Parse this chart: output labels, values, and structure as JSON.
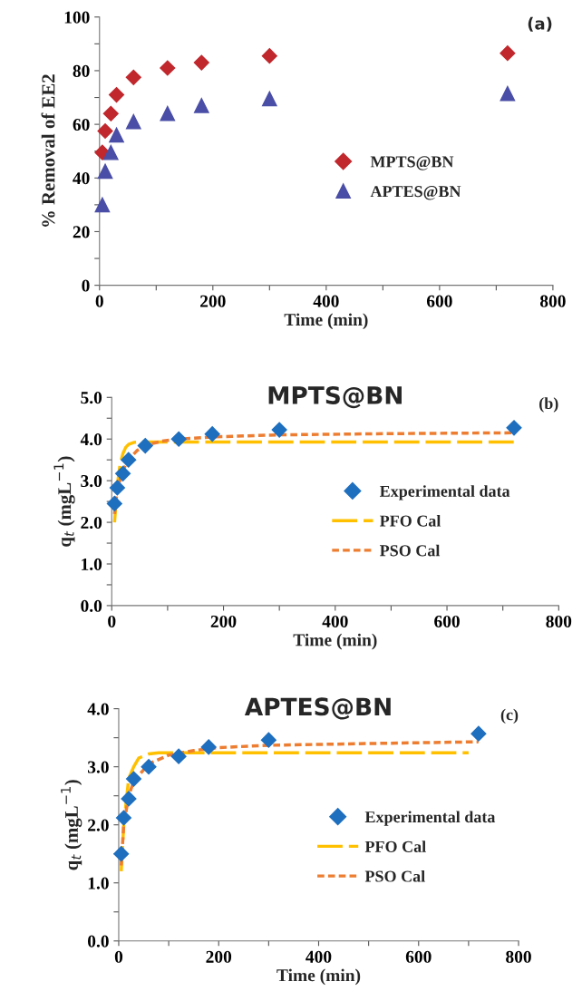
{
  "chart_data": [
    {
      "type": "scatter",
      "xlabel": "Time (min)",
      "ylabel": "% Removal of EE2",
      "annotations": [
        "(a)"
      ],
      "legend": "center right",
      "grid": false,
      "xlim": [
        0,
        800
      ],
      "xticks": [
        0,
        {
          "value": 100,
          "label": null
        },
        200,
        {
          "value": 300,
          "label": null
        },
        400,
        {
          "value": 500,
          "label": null
        },
        600,
        {
          "value": 700,
          "label": null
        },
        800
      ],
      "ylim": [
        0,
        100
      ],
      "yticks": [
        0,
        {
          "value": 10,
          "label": null
        },
        20,
        {
          "value": 30,
          "label": null
        },
        40,
        {
          "value": 50,
          "label": null
        },
        60,
        {
          "value": 70,
          "label": null
        },
        80,
        {
          "value": 90,
          "label": null
        },
        100
      ],
      "x": [
        5,
        10,
        20,
        30,
        60,
        120,
        180,
        300,
        720
      ],
      "series": [
        {
          "name": "MPTS@BN",
          "color": "#c0282d",
          "marker": "diamond",
          "values": [
            49.5,
            57.5,
            64,
            71,
            77.5,
            81,
            83,
            85.5,
            86.5
          ]
        },
        {
          "name": "APTES@BN",
          "color": "#4a4ea6",
          "marker": "triangle",
          "values": [
            30,
            42.5,
            49.5,
            56,
            61,
            64,
            67,
            69.5,
            71.5
          ]
        }
      ]
    },
    {
      "type": "scatter",
      "title": "MPTS@BN",
      "xlabel": "Time (min)",
      "ylabel": "q$_{t}$ (mgL$^{−1}$)",
      "annotations": [
        "(b)"
      ],
      "legend": "center right",
      "grid": false,
      "xlim": [
        0,
        800
      ],
      "xticks": [
        0,
        {
          "value": 100,
          "label": null
        },
        200,
        {
          "value": 300,
          "label": null
        },
        400,
        {
          "value": 500,
          "label": null
        },
        600,
        {
          "value": 700,
          "label": null
        },
        800
      ],
      "ylim": [
        0,
        5
      ],
      "yticks": [
        {
          "value": 0,
          "label": "0.0"
        },
        {
          "value": 0.5,
          "label": null
        },
        {
          "value": 1,
          "label": "1.0"
        },
        {
          "value": 1.5,
          "label": null
        },
        {
          "value": 2,
          "label": "2.0"
        },
        {
          "value": 2.5,
          "label": null
        },
        {
          "value": 3,
          "label": "3.0"
        },
        {
          "value": 3.5,
          "label": null
        },
        {
          "value": 4,
          "label": "4.0"
        },
        {
          "value": 4.5,
          "label": null
        },
        {
          "value": 5,
          "label": "5.0"
        }
      ],
      "series": [
        {
          "name": "Experimental data",
          "color": "#1f6fbf",
          "marker": "diamond",
          "x": [
            5,
            10,
            20,
            30,
            60,
            120,
            180,
            300,
            720
          ],
          "values": [
            2.45,
            2.83,
            3.17,
            3.5,
            3.84,
            4.0,
            4.12,
            4.22,
            4.27
          ]
        },
        {
          "name": "PFO Cal",
          "type": "line",
          "color": "#ffc000",
          "line_style": "dashed",
          "x": [
            5,
            10,
            15,
            20,
            25,
            30,
            40,
            50,
            60,
            100,
            720
          ],
          "values": [
            2.0,
            2.9,
            3.4,
            3.65,
            3.8,
            3.87,
            3.92,
            3.93,
            3.93,
            3.93,
            3.93
          ]
        },
        {
          "name": "PSO Cal",
          "type": "line",
          "color": "#ed7d31",
          "line_style": "dotted",
          "x": [
            5,
            10,
            20,
            30,
            45,
            60,
            90,
            120,
            180,
            300,
            500,
            720
          ],
          "values": [
            2.2,
            2.8,
            3.25,
            3.5,
            3.72,
            3.85,
            3.95,
            4.0,
            4.05,
            4.1,
            4.13,
            4.15
          ]
        }
      ]
    },
    {
      "type": "scatter",
      "title": "APTES@BN",
      "xlabel": "Time (min)",
      "ylabel": "q$_{t}$ (mgL$^{−1}$)",
      "annotations": [
        "(c)"
      ],
      "legend": "center right",
      "grid": false,
      "xlim": [
        0,
        800
      ],
      "xticks": [
        0,
        {
          "value": 100,
          "label": null
        },
        200,
        {
          "value": 300,
          "label": null
        },
        400,
        {
          "value": 500,
          "label": null
        },
        600,
        {
          "value": 700,
          "label": null
        },
        800
      ],
      "ylim": [
        0,
        4
      ],
      "yticks": [
        {
          "value": 0,
          "label": "0.0"
        },
        {
          "value": 0.5,
          "label": null
        },
        {
          "value": 1,
          "label": "1.0"
        },
        {
          "value": 1.5,
          "label": null
        },
        {
          "value": 2,
          "label": "2.0"
        },
        {
          "value": 2.5,
          "label": null
        },
        {
          "value": 3,
          "label": "3.0"
        },
        {
          "value": 3.5,
          "label": null
        },
        {
          "value": 4,
          "label": "4.0"
        }
      ],
      "series": [
        {
          "name": "Experimental data",
          "color": "#1f6fbf",
          "marker": "diamond",
          "x": [
            5,
            10,
            20,
            30,
            60,
            120,
            180,
            300,
            720
          ],
          "values": [
            1.5,
            2.12,
            2.45,
            2.79,
            3.0,
            3.18,
            3.34,
            3.46,
            3.57
          ]
        },
        {
          "name": "PFO Cal",
          "type": "line",
          "color": "#ffc000",
          "line_style": "dashed",
          "x": [
            5,
            10,
            20,
            30,
            40,
            60,
            80,
            700
          ],
          "values": [
            1.2,
            2.0,
            2.8,
            3.0,
            3.15,
            3.22,
            3.24,
            3.24
          ]
        },
        {
          "name": "PSO Cal",
          "type": "line",
          "color": "#ed7d31",
          "line_style": "dotted",
          "x": [
            5,
            10,
            20,
            30,
            60,
            100,
            150,
            200,
            300,
            500,
            720
          ],
          "values": [
            1.3,
            2.0,
            2.5,
            2.75,
            3.05,
            3.2,
            3.28,
            3.33,
            3.37,
            3.4,
            3.43
          ]
        }
      ]
    }
  ]
}
